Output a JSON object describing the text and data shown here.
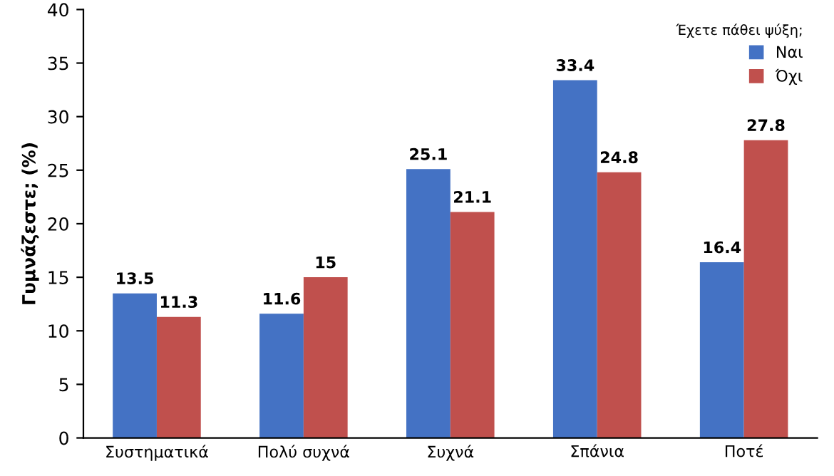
{
  "chart_data": {
    "type": "bar",
    "ylabel": "Γυμνάζεστε; (%)",
    "legend_title": "Έχετε πάθει ψύξη;",
    "categories": [
      "Συστηματικά",
      "Πολύ συχνά",
      "Συχνά",
      "Σπάνια",
      "Ποτέ"
    ],
    "series": [
      {
        "name": "Ναι",
        "color": "#4472c4",
        "values": [
          13.5,
          11.6,
          25.1,
          33.4,
          16.4
        ]
      },
      {
        "name": "Όχι",
        "color": "#c0504d",
        "values": [
          11.3,
          15,
          21.1,
          24.8,
          27.8
        ]
      }
    ],
    "ylim": [
      0,
      40
    ],
    "yticks": [
      0,
      5,
      10,
      15,
      20,
      25,
      30,
      35,
      40
    ],
    "grid": false,
    "legend": "top right",
    "data_labels": true
  }
}
